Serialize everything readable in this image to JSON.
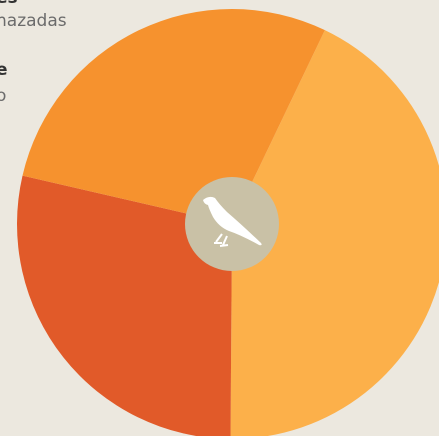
{
  "chart_data": {
    "type": "pie",
    "values": [
      43,
      28.5,
      28.5
    ],
    "colors": [
      "#fcb04a",
      "#e15a29",
      "#f6922e"
    ],
    "annotations": [
      {
        "text": "es",
        "bold": true
      },
      {
        "text": "nazadas",
        "bold": false
      },
      {
        "text": "e",
        "bold": true
      },
      {
        "text": "o",
        "bold": false
      }
    ]
  }
}
